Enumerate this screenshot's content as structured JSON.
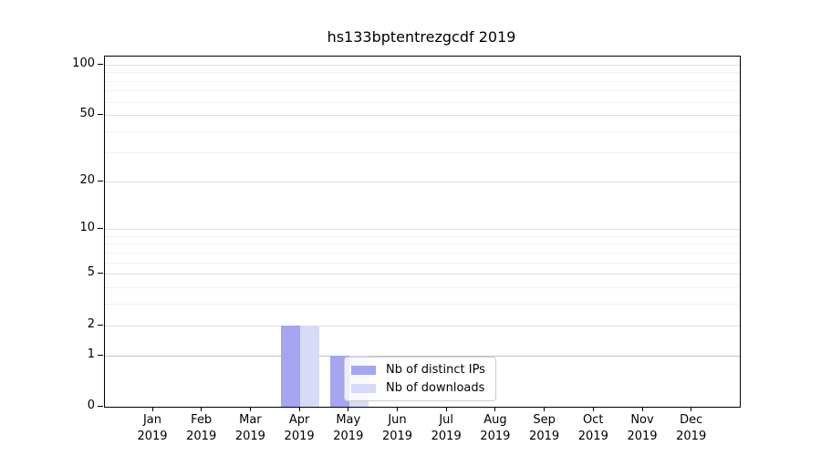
{
  "title": "hs133bptentrezgcdf 2019",
  "chart_data": {
    "type": "bar",
    "title": "hs133bptentrezgcdf 2019",
    "x_categories": [
      "Jan",
      "Feb",
      "Mar",
      "Apr",
      "May",
      "Jun",
      "Jul",
      "Aug",
      "Sep",
      "Oct",
      "Nov",
      "Dec"
    ],
    "x_year_label": "2019",
    "series": [
      {
        "name": "Nb of distinct IPs",
        "color": "#a5a5f1",
        "values": [
          0,
          0,
          0,
          2,
          1,
          0,
          0,
          0,
          0,
          0,
          0,
          0
        ]
      },
      {
        "name": "Nb of downloads",
        "color": "#d9d9f8",
        "values": [
          0,
          0,
          0,
          2,
          1,
          0,
          0,
          0,
          0,
          0,
          0,
          0
        ]
      }
    ],
    "yscale": "log1p",
    "ylim": [
      0,
      112
    ],
    "ytick_values": [
      0,
      1,
      2,
      5,
      10,
      20,
      50,
      100
    ],
    "minor_grid_values": [
      3,
      4,
      6,
      7,
      8,
      9,
      30,
      40,
      60,
      70,
      80,
      90
    ],
    "grid": true,
    "legend": {
      "position": "lower center, inside plot",
      "entries": [
        {
          "label": "Nb of distinct IPs",
          "color": "#a5a5f1"
        },
        {
          "label": "Nb of downloads",
          "color": "#d9d9f8"
        }
      ]
    }
  },
  "colors": {
    "background": "#ffffff",
    "spine": "#000000",
    "grid_base": "#c4c4c4",
    "grid_labeled": "#e0e0e0",
    "grid_minor": "#f1f1f1",
    "legend_border": "#cccccc"
  }
}
